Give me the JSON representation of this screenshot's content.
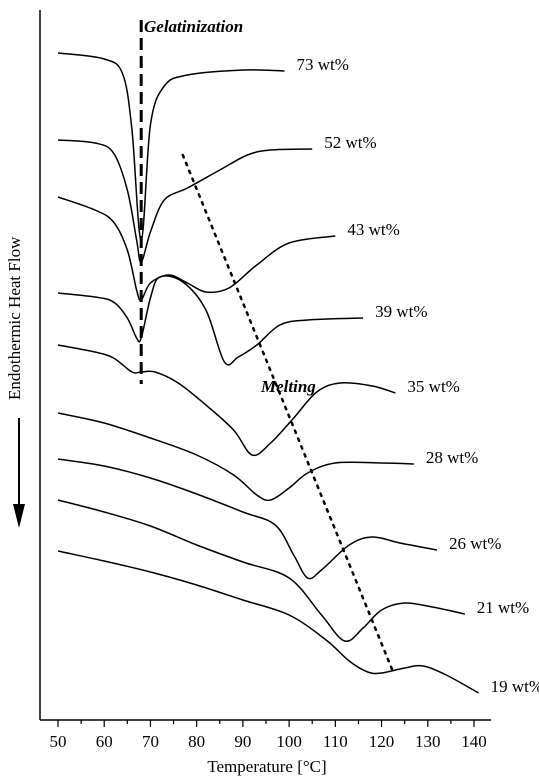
{
  "chart_data": {
    "type": "line",
    "xlabel": "Temperature [°C]",
    "ylabel": "Endothermic Heat Flow",
    "xlim": [
      45,
      145
    ],
    "xticks": [
      50,
      60,
      70,
      80,
      90,
      100,
      110,
      120,
      130,
      140
    ],
    "y_units": "arbitrary (vertically offset DSC thermograms)",
    "annotations": {
      "gelatinization": "Gelatinization",
      "melting": "Melting"
    },
    "gelatinization_line": {
      "x": 68,
      "style": "dashed"
    },
    "melting_line": {
      "style": "dotted",
      "points": [
        [
          77,
          155
        ],
        [
          122.5,
          672
        ]
      ]
    },
    "series": [
      {
        "name": "73 wt%",
        "points": [
          [
            50,
            53
          ],
          [
            60,
            59
          ],
          [
            64,
            74
          ],
          [
            66,
            130
          ],
          [
            68,
            240
          ],
          [
            70,
            125
          ],
          [
            73,
            86
          ],
          [
            78,
            75
          ],
          [
            90,
            70
          ],
          [
            99,
            71
          ]
        ]
      },
      {
        "name": "52 wt%",
        "points": [
          [
            50,
            140
          ],
          [
            58,
            143
          ],
          [
            62,
            153
          ],
          [
            65,
            190
          ],
          [
            67,
            240
          ],
          [
            68,
            262
          ],
          [
            70,
            232
          ],
          [
            73,
            200
          ],
          [
            78,
            188
          ],
          [
            85,
            170
          ],
          [
            91,
            155
          ],
          [
            96,
            150
          ],
          [
            105,
            149
          ]
        ]
      },
      {
        "name": "43 wt%",
        "points": [
          [
            50,
            197
          ],
          [
            58,
            210
          ],
          [
            62,
            222
          ],
          [
            65,
            250
          ],
          [
            67,
            290
          ],
          [
            68,
            300
          ],
          [
            70,
            283
          ],
          [
            74,
            275
          ],
          [
            78,
            283
          ],
          [
            82,
            292
          ],
          [
            87,
            288
          ],
          [
            93,
            265
          ],
          [
            100,
            243
          ],
          [
            110,
            236
          ]
        ]
      },
      {
        "name": "39 wt%",
        "points": [
          [
            50,
            293
          ],
          [
            58,
            297
          ],
          [
            62,
            302
          ],
          [
            65,
            318
          ],
          [
            67,
            338
          ],
          [
            68,
            338
          ],
          [
            70,
            298
          ],
          [
            72,
            277
          ],
          [
            77,
            282
          ],
          [
            82,
            310
          ],
          [
            86,
            362
          ],
          [
            89,
            357
          ],
          [
            93,
            345
          ],
          [
            98,
            325
          ],
          [
            104,
            320
          ],
          [
            116,
            318
          ]
        ]
      },
      {
        "name": "35 wt%",
        "points": [
          [
            50,
            345
          ],
          [
            58,
            352
          ],
          [
            62,
            358
          ],
          [
            66,
            372
          ],
          [
            68,
            372
          ],
          [
            71,
            372
          ],
          [
            76,
            383
          ],
          [
            82,
            405
          ],
          [
            88,
            430
          ],
          [
            92,
            455
          ],
          [
            96,
            443
          ],
          [
            101,
            418
          ],
          [
            106,
            392
          ],
          [
            111,
            383
          ],
          [
            118,
            386
          ],
          [
            123,
            393
          ]
        ]
      },
      {
        "name": "28 wt%",
        "points": [
          [
            50,
            413
          ],
          [
            60,
            423
          ],
          [
            70,
            438
          ],
          [
            80,
            455
          ],
          [
            88,
            475
          ],
          [
            93,
            495
          ],
          [
            96,
            500
          ],
          [
            100,
            488
          ],
          [
            104,
            473
          ],
          [
            110,
            463
          ],
          [
            120,
            463
          ],
          [
            127,
            464
          ]
        ]
      },
      {
        "name": "26 wt%",
        "points": [
          [
            50,
            459
          ],
          [
            60,
            466
          ],
          [
            70,
            478
          ],
          [
            80,
            494
          ],
          [
            90,
            512
          ],
          [
            97,
            525
          ],
          [
            101,
            555
          ],
          [
            104,
            578
          ],
          [
            107,
            570
          ],
          [
            113,
            545
          ],
          [
            118,
            537
          ],
          [
            124,
            543
          ],
          [
            132,
            550
          ]
        ]
      },
      {
        "name": "21 wt%",
        "points": [
          [
            50,
            500
          ],
          [
            60,
            512
          ],
          [
            70,
            526
          ],
          [
            80,
            545
          ],
          [
            90,
            562
          ],
          [
            100,
            578
          ],
          [
            107,
            615
          ],
          [
            112,
            641
          ],
          [
            116,
            628
          ],
          [
            120,
            610
          ],
          [
            125,
            603
          ],
          [
            131,
            607
          ],
          [
            138,
            614
          ]
        ]
      },
      {
        "name": "19 wt%",
        "points": [
          [
            50,
            551
          ],
          [
            60,
            561
          ],
          [
            70,
            572
          ],
          [
            80,
            585
          ],
          [
            90,
            600
          ],
          [
            100,
            615
          ],
          [
            108,
            640
          ],
          [
            113,
            661
          ],
          [
            117,
            672
          ],
          [
            120,
            673
          ],
          [
            125,
            668
          ],
          [
            129,
            666
          ],
          [
            134,
            675
          ],
          [
            141,
            693
          ]
        ]
      }
    ]
  }
}
